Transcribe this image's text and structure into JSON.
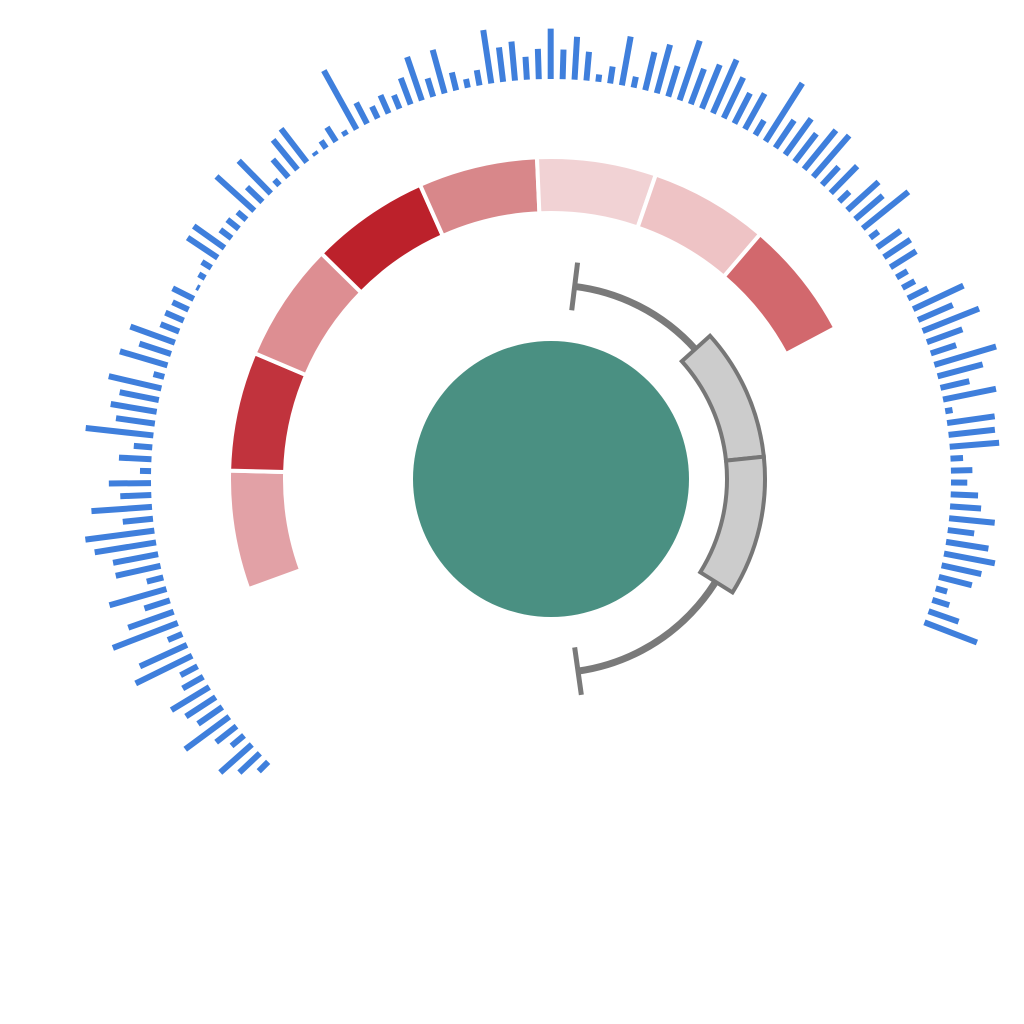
{
  "chart_data": {
    "type": "radial-composite",
    "title": "",
    "center_disc": {
      "color": "#4a9082"
    },
    "bar_color": "#3f7fdc",
    "bar_values": [
      0.18,
      0.38,
      0.57,
      0.22,
      0.35,
      0.74,
      0.4,
      0.48,
      0.6,
      0.32,
      0.26,
      0.85,
      0.7,
      0.21,
      0.94,
      0.65,
      0.36,
      0.8,
      0.23,
      0.62,
      0.62,
      0.84,
      0.94,
      0.41,
      0.82,
      0.42,
      0.57,
      0.15,
      0.44,
      0.25,
      0.92,
      0.53,
      0.63,
      0.54,
      0.73,
      0.15,
      0.67,
      0.45,
      0.64,
      0.27,
      0.27,
      0.24,
      0.32,
      0.04,
      0.1,
      0.15,
      0.49,
      0.51,
      0.19,
      0.2,
      0.16,
      0.69,
      0.29,
      0.62,
      0.1,
      0.32,
      0.52,
      0.57,
      0.05,
      0.12,
      0.23,
      0.07,
      0.91,
      0.32,
      0.18,
      0.27,
      0.2,
      0.38,
      0.62,
      0.26,
      0.61,
      0.25,
      0.12,
      0.21,
      0.73,
      0.47,
      0.53,
      0.31,
      0.41,
      0.68,
      0.4,
      0.58,
      0.39,
      0.1,
      0.23,
      0.67,
      0.15,
      0.53,
      0.68,
      0.43,
      0.85,
      0.51,
      0.64,
      0.79,
      0.61,
      0.46,
      0.55,
      0.23,
      0.93,
      0.45,
      0.6,
      0.48,
      0.68,
      0.74,
      0.33,
      0.51,
      0.19,
      0.57,
      0.49,
      0.79,
      0.14,
      0.39,
      0.43,
      0.41,
      0.17,
      0.19,
      0.3,
      0.75,
      0.51,
      0.82,
      0.51,
      0.36,
      0.87,
      0.63,
      0.4,
      0.73,
      0.1,
      0.65,
      0.63,
      0.67,
      0.17,
      0.29,
      0.22,
      0.37,
      0.42,
      0.62,
      0.36,
      0.58,
      0.7,
      0.55,
      0.46,
      0.16,
      0.24,
      0.43,
      0.76
    ],
    "ring_segments": [
      {
        "color": "#e2a1a6"
      },
      {
        "color": "#c1333d"
      },
      {
        "color": "#dd8e92"
      },
      {
        "color": "#bc212b"
      },
      {
        "color": "#d8878a"
      },
      {
        "color": "#f1d2d4"
      },
      {
        "color": "#eec3c5"
      },
      {
        "color": "#d2686d"
      }
    ],
    "inner_track": {
      "color": "#7a7a7a"
    },
    "inner_blocks": [
      {
        "fill": "#cccccc",
        "stroke": "#777777"
      },
      {
        "fill": "#cccccc",
        "stroke": "#777777"
      }
    ]
  }
}
